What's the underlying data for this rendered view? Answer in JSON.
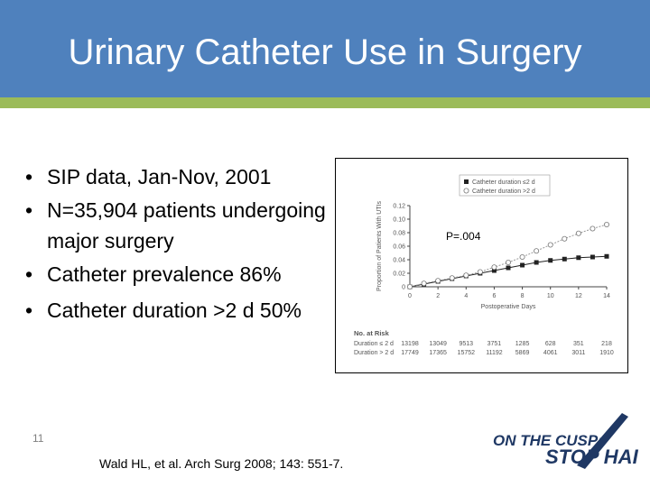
{
  "slide": {
    "title": "Urinary Catheter Use in Surgery",
    "bullets": [
      "SIP data, Jan-Nov, 2001",
      "N=35,904 patients undergoing major surgery",
      "Catheter prevalence 86%",
      "Catheter duration >2 d 50%"
    ],
    "page_number": "11",
    "citation": "Wald HL, et al. Arch Surg 2008; 143: 551-7.",
    "colors": {
      "header": "#4f81bd",
      "stripe": "#9bbb59"
    }
  },
  "logo": {
    "line1": "ON THE CUSP:",
    "line2": "STOP HAI"
  },
  "chart_data": {
    "type": "line",
    "xlabel": "Postoperative Days",
    "ylabel": "Proportion of Patients With UTIs",
    "annotation": "P=.004",
    "xlim": [
      0,
      14
    ],
    "ylim": [
      0,
      0.12
    ],
    "xticks": [
      0,
      2,
      4,
      6,
      8,
      10,
      12,
      14
    ],
    "yticks": [
      0,
      0.02,
      0.04,
      0.06,
      0.08,
      0.1,
      0.12
    ],
    "ytick_labels": [
      "0",
      "0.02",
      "0.04",
      "0.06",
      "0.08",
      "0.10",
      "0.12"
    ],
    "x": [
      0,
      1,
      2,
      3,
      4,
      5,
      6,
      7,
      8,
      9,
      10,
      11,
      12,
      13,
      14
    ],
    "series": [
      {
        "name": "Catheter duration ≤2 d",
        "marker": "square-filled",
        "values": [
          0,
          0.004,
          0.008,
          0.012,
          0.016,
          0.02,
          0.024,
          0.028,
          0.032,
          0.036,
          0.039,
          0.041,
          0.043,
          0.044,
          0.045
        ]
      },
      {
        "name": "Catheter duration >2 d",
        "marker": "circle-open",
        "values": [
          0,
          0.005,
          0.009,
          0.013,
          0.017,
          0.022,
          0.029,
          0.036,
          0.044,
          0.053,
          0.062,
          0.071,
          0.079,
          0.086,
          0.092
        ]
      }
    ],
    "at_risk": {
      "title": "No. at Risk",
      "rows": [
        {
          "label": "Duration ≤ 2 d",
          "values": [
            "13198",
            "13049",
            "9513",
            "3751",
            "1285",
            "628",
            "351",
            "218"
          ]
        },
        {
          "label": "Duration > 2 d",
          "values": [
            "17749",
            "17365",
            "15752",
            "11192",
            "5869",
            "4061",
            "3011",
            "1910"
          ]
        }
      ]
    }
  }
}
